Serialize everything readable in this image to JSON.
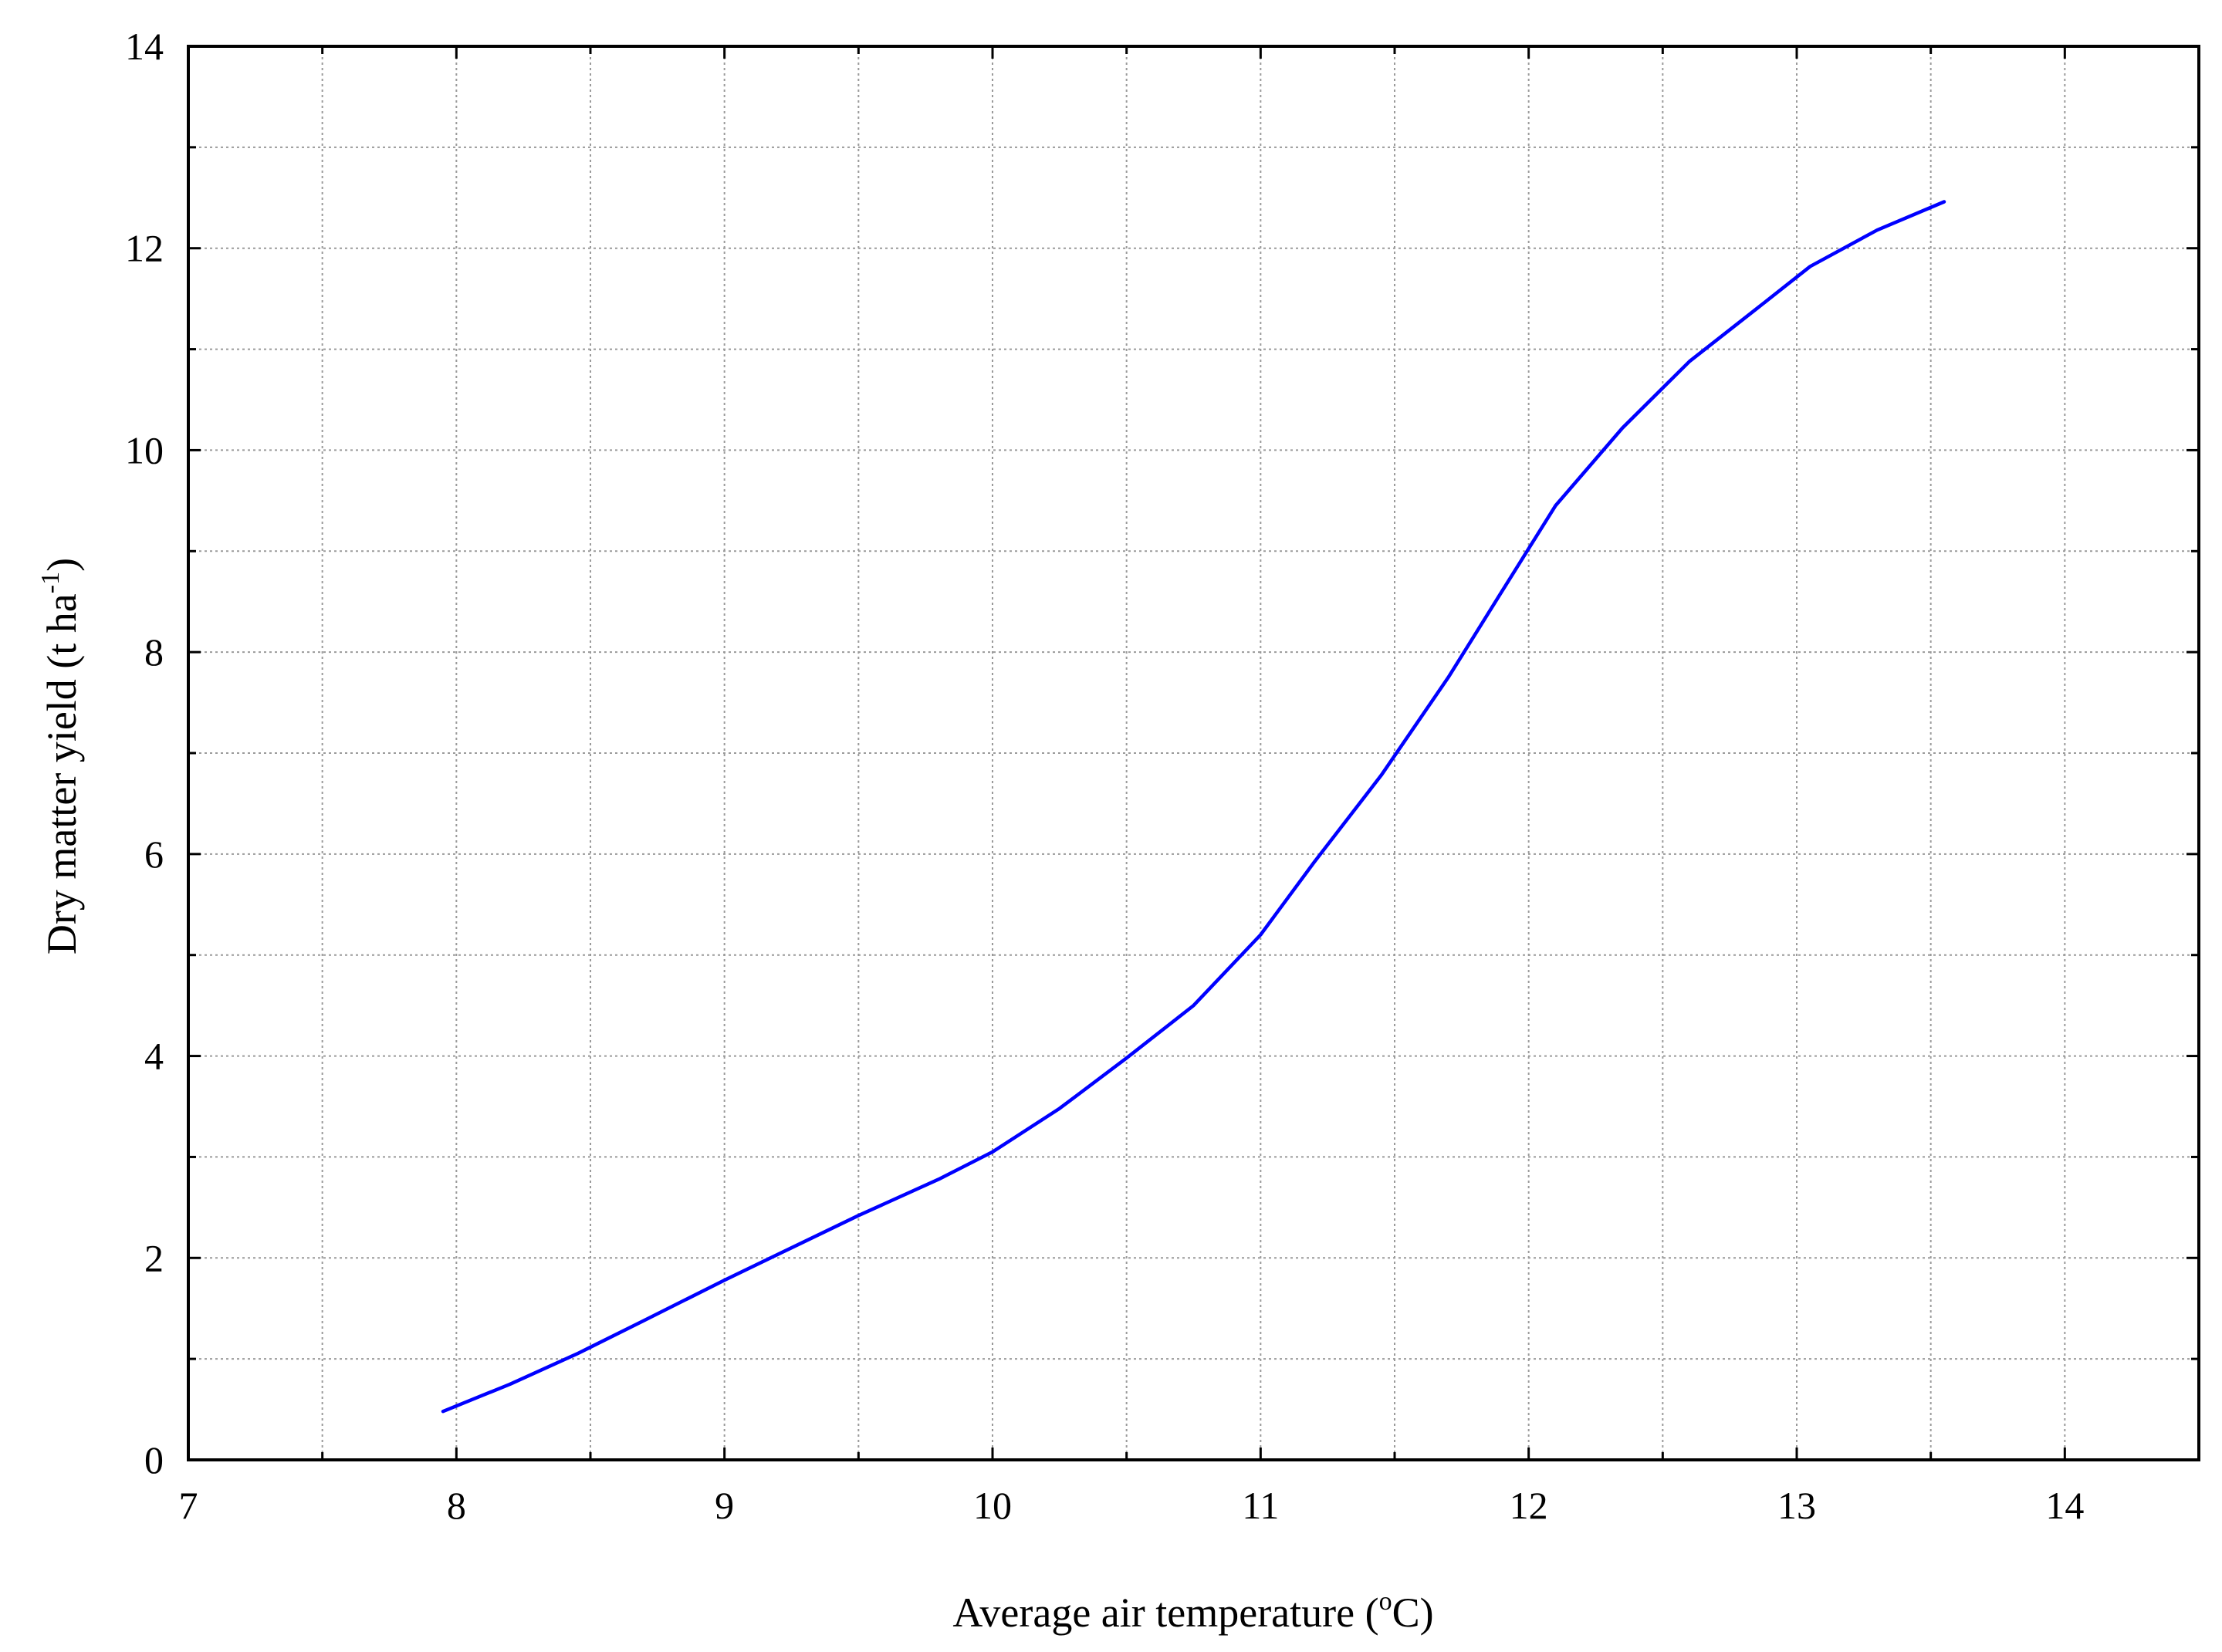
{
  "chart_data": {
    "type": "line",
    "title": "",
    "xlabel": {
      "text": "Average air temperature (",
      "sup": "o",
      "unit": "C)"
    },
    "ylabel": {
      "text": "Dry matter yield (t ha",
      "sup": "-1",
      "close": ")"
    },
    "xlim": [
      7,
      14.5
    ],
    "ylim": [
      0,
      14
    ],
    "x_ticks": [
      7,
      8,
      9,
      10,
      11,
      12,
      13,
      14
    ],
    "y_ticks": [
      0,
      2,
      4,
      6,
      8,
      10,
      12,
      14
    ],
    "x_minor_step": 0.5,
    "y_minor_step": 1,
    "grid": true,
    "line_color": "#0000ff",
    "series": [
      {
        "x": [
          7.95,
          8.2,
          8.45,
          8.7,
          9.0,
          9.25,
          9.5,
          9.8,
          10.0,
          10.25,
          10.5,
          10.75,
          11.0,
          11.2,
          11.45,
          11.7,
          11.9,
          12.1,
          12.35,
          12.6,
          12.85,
          13.05,
          13.3,
          13.55
        ],
        "y": [
          0.48,
          0.75,
          1.05,
          1.38,
          1.78,
          2.1,
          2.42,
          2.78,
          3.05,
          3.48,
          3.98,
          4.5,
          5.2,
          5.92,
          6.78,
          7.75,
          8.6,
          9.45,
          10.22,
          10.88,
          11.4,
          11.82,
          12.18,
          12.46
        ]
      }
    ]
  }
}
